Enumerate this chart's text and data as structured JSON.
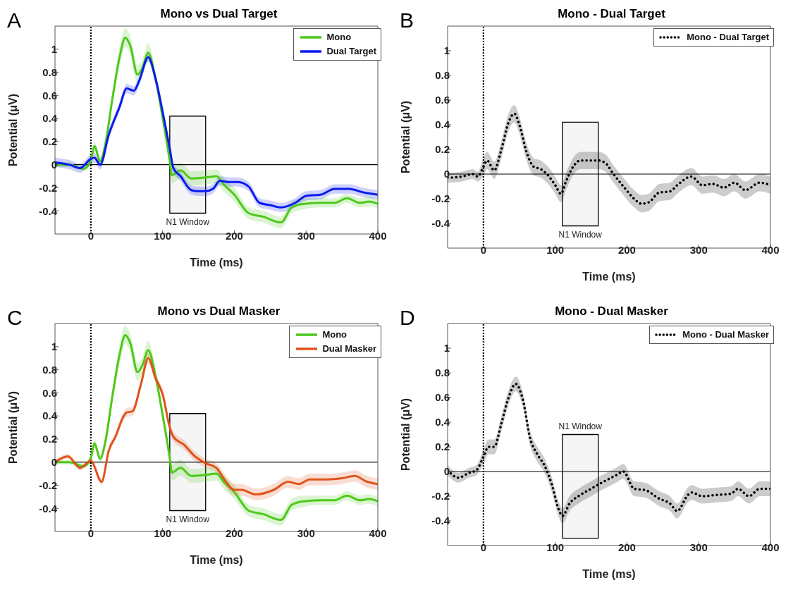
{
  "chart_data": [
    {
      "type": "line",
      "title": "Mono vs Dual Target",
      "xlabel": "Time (ms)",
      "ylabel": "Potential (μV)",
      "annotations": [
        "A"
      ],
      "xlim": [
        -50,
        400
      ],
      "xticks": [
        0,
        100,
        200,
        300,
        400
      ],
      "ylim": [
        -0.6,
        1.2
      ],
      "yticks": [
        -0.4,
        -0.2,
        0,
        0.2,
        0.4,
        0.6,
        0.8,
        1
      ],
      "grid": false,
      "legend": "top right",
      "marker": "none",
      "ref_lines": [
        {
          "axis": "x",
          "value": 0,
          "line_style": "dotted",
          "color": "#000000"
        },
        {
          "axis": "y",
          "value": 0,
          "line_style": "solid",
          "color": "#000000"
        }
      ],
      "bands": [
        {
          "axis": "x",
          "from": 110,
          "to": 160,
          "label": "N1 Window"
        }
      ],
      "series": [
        {
          "name": "Mono",
          "color": "#4dc919",
          "line_style": "solid",
          "x": [
            -50,
            -30,
            -10,
            0,
            5,
            13,
            20,
            30,
            40,
            48,
            55,
            65,
            72,
            80,
            90,
            100,
            110,
            113,
            125,
            140,
            160,
            175,
            185,
            200,
            220,
            240,
            265,
            280,
            295,
            320,
            340,
            357,
            375,
            388,
            400
          ],
          "values": [
            0,
            0,
            -0.035,
            0.035,
            0.16,
            0.03,
            0.17,
            0.57,
            0.93,
            1.1,
            1.03,
            0.78,
            0.84,
            0.97,
            0.75,
            0.41,
            0.035,
            -0.09,
            -0.05,
            -0.12,
            -0.11,
            -0.1,
            -0.17,
            -0.26,
            -0.42,
            -0.45,
            -0.5,
            -0.37,
            -0.34,
            -0.33,
            -0.33,
            -0.29,
            -0.33,
            -0.32,
            -0.34
          ],
          "lower": [
            -0.02,
            -0.02,
            -0.055,
            0.005,
            0.12,
            0,
            0.12,
            0.51,
            0.85,
            1.02,
            0.95,
            0.7,
            0.77,
            0.89,
            0.69,
            0.35,
            -0.035,
            -0.16,
            -0.12,
            -0.18,
            -0.17,
            -0.16,
            -0.23,
            -0.32,
            -0.47,
            -0.5,
            -0.55,
            -0.42,
            -0.39,
            -0.37,
            -0.37,
            -0.33,
            -0.37,
            -0.36,
            -0.38
          ],
          "upper": [
            0.02,
            0.02,
            -0.015,
            0.065,
            0.2,
            0.06,
            0.22,
            0.63,
            1.01,
            1.18,
            1.11,
            0.86,
            0.91,
            1.05,
            0.81,
            0.47,
            0.105,
            -0.02,
            0.02,
            -0.06,
            -0.05,
            -0.04,
            -0.11,
            -0.2,
            -0.37,
            -0.4,
            -0.45,
            -0.32,
            -0.29,
            -0.29,
            -0.29,
            -0.25,
            -0.29,
            -0.28,
            -0.3
          ]
        },
        {
          "name": "Dual Target",
          "color": "#0a1bf0",
          "line_style": "solid",
          "x": [
            -50,
            -30,
            -15,
            0,
            5,
            13,
            25,
            40,
            50,
            60,
            67,
            80,
            90,
            100,
            110,
            115,
            125,
            140,
            150,
            160,
            170,
            180,
            192,
            205,
            220,
            235,
            250,
            265,
            285,
            300,
            320,
            340,
            360,
            380,
            400
          ],
          "values": [
            0.02,
            0,
            -0.03,
            0.05,
            0.06,
            0,
            0.26,
            0.5,
            0.66,
            0.64,
            0.72,
            0.93,
            0.75,
            0.46,
            0.14,
            -0.03,
            -0.1,
            -0.22,
            -0.23,
            -0.23,
            -0.21,
            -0.14,
            -0.15,
            -0.15,
            -0.19,
            -0.33,
            -0.35,
            -0.37,
            -0.33,
            -0.27,
            -0.26,
            -0.21,
            -0.21,
            -0.24,
            -0.26
          ],
          "lower": [
            -0.02,
            -0.04,
            -0.07,
            0.01,
            0.02,
            -0.04,
            0.22,
            0.46,
            0.62,
            0.6,
            0.68,
            0.89,
            0.71,
            0.42,
            0.1,
            -0.07,
            -0.14,
            -0.26,
            -0.27,
            -0.27,
            -0.25,
            -0.18,
            -0.19,
            -0.19,
            -0.23,
            -0.37,
            -0.39,
            -0.41,
            -0.37,
            -0.31,
            -0.3,
            -0.25,
            -0.25,
            -0.28,
            -0.3
          ],
          "upper": [
            0.06,
            0.04,
            0.01,
            0.09,
            0.1,
            0.04,
            0.3,
            0.54,
            0.7,
            0.68,
            0.76,
            0.97,
            0.79,
            0.5,
            0.18,
            0.01,
            -0.06,
            -0.18,
            -0.19,
            -0.19,
            -0.17,
            -0.1,
            -0.11,
            -0.11,
            -0.15,
            -0.29,
            -0.31,
            -0.33,
            -0.29,
            -0.23,
            -0.22,
            -0.17,
            -0.17,
            -0.2,
            -0.22
          ]
        }
      ]
    },
    {
      "type": "line",
      "title": "Mono - Dual Target",
      "xlabel": "Time (ms)",
      "ylabel": "Potential (μV)",
      "annotations": [
        "B"
      ],
      "xlim": [
        -50,
        400
      ],
      "xticks": [
        0,
        100,
        200,
        300,
        400
      ],
      "ylim": [
        -0.6,
        1.2
      ],
      "yticks": [
        -0.4,
        -0.2,
        0,
        0.2,
        0.4,
        0.6,
        0.8,
        1
      ],
      "grid": false,
      "legend": "top right",
      "marker": "none",
      "ref_lines": [
        {
          "axis": "x",
          "value": 0,
          "line_style": "dotted",
          "color": "#000000"
        },
        {
          "axis": "y",
          "value": 0,
          "line_style": "solid",
          "color": "#000000"
        }
      ],
      "bands": [
        {
          "axis": "x",
          "from": 110,
          "to": 160,
          "label": "N1 Window"
        }
      ],
      "series": [
        {
          "name": "Mono - Dual Target",
          "color": "#000000",
          "line_style": "dotted",
          "x": [
            -50,
            -30,
            -15,
            -8,
            0,
            5,
            15,
            25,
            35,
            43,
            50,
            60,
            70,
            80,
            90,
            100,
            108,
            115,
            125,
            135,
            150,
            160,
            170,
            180,
            195,
            210,
            220,
            230,
            245,
            260,
            270,
            290,
            305,
            320,
            335,
            350,
            365,
            385,
            400
          ],
          "values": [
            -0.03,
            -0.02,
            0,
            -0.02,
            0.06,
            0.11,
            0.03,
            0.2,
            0.42,
            0.49,
            0.4,
            0.18,
            0.06,
            0.04,
            -0.01,
            -0.09,
            -0.16,
            -0.06,
            0.06,
            0.11,
            0.11,
            0.11,
            0.09,
            0.01,
            -0.1,
            -0.2,
            -0.24,
            -0.23,
            -0.15,
            -0.14,
            -0.09,
            -0.02,
            -0.09,
            -0.08,
            -0.11,
            -0.07,
            -0.13,
            -0.07,
            -0.09
          ],
          "lower": [
            -0.07,
            -0.06,
            -0.04,
            -0.06,
            -0.01,
            0.04,
            -0.04,
            0.13,
            0.35,
            0.42,
            0.33,
            0.11,
            -0.01,
            -0.03,
            -0.08,
            -0.16,
            -0.23,
            -0.13,
            -0.01,
            0.04,
            0.04,
            0.04,
            0.02,
            -0.06,
            -0.17,
            -0.27,
            -0.31,
            -0.3,
            -0.22,
            -0.21,
            -0.16,
            -0.09,
            -0.16,
            -0.15,
            -0.18,
            -0.14,
            -0.2,
            -0.14,
            -0.16
          ],
          "upper": [
            0.01,
            0.02,
            0.04,
            0.02,
            0.13,
            0.18,
            0.1,
            0.27,
            0.49,
            0.56,
            0.47,
            0.25,
            0.13,
            0.11,
            0.06,
            -0.02,
            -0.09,
            0.01,
            0.13,
            0.18,
            0.18,
            0.18,
            0.16,
            0.08,
            -0.03,
            -0.13,
            -0.17,
            -0.16,
            -0.08,
            -0.07,
            -0.02,
            0.05,
            -0.02,
            -0.01,
            -0.04,
            0,
            -0.06,
            0,
            -0.02
          ]
        }
      ]
    },
    {
      "type": "line",
      "title": "Mono vs Dual Masker",
      "xlabel": "Time (ms)",
      "ylabel": "Potential (μV)",
      "annotations": [
        "C"
      ],
      "xlim": [
        -50,
        400
      ],
      "xticks": [
        0,
        100,
        200,
        300,
        400
      ],
      "ylim": [
        -0.6,
        1.2
      ],
      "yticks": [
        -0.4,
        -0.2,
        0,
        0.2,
        0.4,
        0.6,
        0.8,
        1
      ],
      "grid": false,
      "legend": "top right",
      "marker": "none",
      "ref_lines": [
        {
          "axis": "x",
          "value": 0,
          "line_style": "dotted",
          "color": "#000000"
        },
        {
          "axis": "y",
          "value": 0,
          "line_style": "solid",
          "color": "#000000"
        }
      ],
      "bands": [
        {
          "axis": "x",
          "from": 110,
          "to": 160,
          "label": "N1 Window"
        }
      ],
      "series": [
        {
          "name": "Mono",
          "color": "#4dc919",
          "line_style": "solid",
          "x": [
            -50,
            -30,
            -10,
            0,
            5,
            13,
            20,
            30,
            40,
            48,
            55,
            65,
            72,
            80,
            90,
            100,
            110,
            113,
            125,
            140,
            160,
            175,
            185,
            200,
            220,
            240,
            265,
            280,
            295,
            320,
            340,
            357,
            375,
            388,
            400
          ],
          "values": [
            0,
            0,
            -0.035,
            0.035,
            0.16,
            0.03,
            0.17,
            0.57,
            0.93,
            1.1,
            1.03,
            0.78,
            0.84,
            0.97,
            0.75,
            0.41,
            0.035,
            -0.09,
            -0.05,
            -0.12,
            -0.11,
            -0.1,
            -0.17,
            -0.26,
            -0.42,
            -0.45,
            -0.5,
            -0.37,
            -0.34,
            -0.33,
            -0.33,
            -0.29,
            -0.33,
            -0.32,
            -0.34
          ],
          "lower": [
            -0.02,
            -0.02,
            -0.055,
            0.005,
            0.12,
            0,
            0.12,
            0.51,
            0.85,
            1.02,
            0.95,
            0.7,
            0.77,
            0.89,
            0.69,
            0.35,
            -0.035,
            -0.16,
            -0.12,
            -0.18,
            -0.17,
            -0.16,
            -0.23,
            -0.32,
            -0.47,
            -0.5,
            -0.55,
            -0.42,
            -0.39,
            -0.37,
            -0.37,
            -0.33,
            -0.37,
            -0.36,
            -0.38
          ],
          "upper": [
            0.02,
            0.02,
            -0.015,
            0.065,
            0.2,
            0.06,
            0.22,
            0.63,
            1.01,
            1.18,
            1.11,
            0.86,
            0.91,
            1.05,
            0.81,
            0.47,
            0.105,
            -0.02,
            0.02,
            -0.06,
            -0.05,
            -0.04,
            -0.11,
            -0.2,
            -0.37,
            -0.4,
            -0.45,
            -0.32,
            -0.29,
            -0.29,
            -0.29,
            -0.25,
            -0.29,
            -0.28,
            -0.3
          ]
        },
        {
          "name": "Dual Masker",
          "color": "#e0531c",
          "line_style": "solid",
          "x": [
            -50,
            -32,
            -15,
            0,
            15,
            25,
            35,
            45,
            50,
            58,
            70,
            80,
            90,
            100,
            110,
            115,
            130,
            145,
            160,
            175,
            185,
            200,
            210,
            230,
            255,
            275,
            290,
            305,
            330,
            350,
            368,
            385,
            400
          ],
          "values": [
            0,
            0.05,
            -0.05,
            0.01,
            -0.17,
            0.1,
            0.23,
            0.39,
            0.43,
            0.44,
            0.68,
            0.9,
            0.73,
            0.59,
            0.3,
            0.22,
            0.15,
            0.05,
            -0.01,
            -0.05,
            -0.14,
            -0.24,
            -0.24,
            -0.28,
            -0.24,
            -0.17,
            -0.19,
            -0.15,
            -0.15,
            -0.14,
            -0.12,
            -0.17,
            -0.19
          ],
          "lower": [
            -0.02,
            0.03,
            -0.07,
            -0.01,
            -0.2,
            0.07,
            0.2,
            0.35,
            0.39,
            0.4,
            0.64,
            0.85,
            0.69,
            0.55,
            0.26,
            0.18,
            0.11,
            0.01,
            -0.05,
            -0.09,
            -0.19,
            -0.29,
            -0.29,
            -0.33,
            -0.29,
            -0.22,
            -0.24,
            -0.2,
            -0.2,
            -0.19,
            -0.17,
            -0.22,
            -0.24
          ],
          "upper": [
            0.02,
            0.07,
            -0.03,
            0.03,
            -0.14,
            0.13,
            0.26,
            0.43,
            0.47,
            0.48,
            0.72,
            0.95,
            0.77,
            0.63,
            0.34,
            0.26,
            0.19,
            0.09,
            0.03,
            -0.01,
            -0.09,
            -0.19,
            -0.19,
            -0.23,
            -0.19,
            -0.12,
            -0.14,
            -0.1,
            -0.1,
            -0.09,
            -0.07,
            -0.12,
            -0.14
          ]
        }
      ]
    },
    {
      "type": "line",
      "title": "Mono - Dual Masker",
      "xlabel": "Time (ms)",
      "ylabel": "Potential (μV)",
      "annotations": [
        "D"
      ],
      "xlim": [
        -50,
        400
      ],
      "xticks": [
        0,
        100,
        200,
        300,
        400
      ],
      "ylim": [
        -0.6,
        1.2
      ],
      "yticks": [
        -0.4,
        -0.2,
        0,
        0.2,
        0.4,
        0.6,
        0.8,
        1
      ],
      "grid": false,
      "legend": "top right",
      "marker": "none",
      "ref_lines": [
        {
          "axis": "x",
          "value": 0,
          "line_style": "dotted",
          "color": "#000000"
        },
        {
          "axis": "y",
          "value": 0,
          "line_style": "solid",
          "color": "#000000"
        }
      ],
      "bands": [
        {
          "axis": "x",
          "from": 110,
          "to": 160,
          "label": "N1 Window"
        }
      ],
      "series": [
        {
          "name": "Mono - Dual Masker",
          "color": "#000000",
          "line_style": "dotted",
          "x": [
            -50,
            -35,
            -20,
            -10,
            0,
            7,
            15,
            25,
            35,
            45,
            55,
            65,
            75,
            85,
            95,
            105,
            110,
            120,
            135,
            150,
            165,
            185,
            195,
            210,
            225,
            245,
            260,
            270,
            285,
            290,
            305,
            325,
            345,
            355,
            370,
            385,
            400
          ],
          "values": [
            0.01,
            -0.05,
            -0.01,
            0.01,
            0.12,
            0.2,
            0.2,
            0.39,
            0.6,
            0.71,
            0.58,
            0.27,
            0.14,
            0.05,
            -0.1,
            -0.31,
            -0.36,
            -0.26,
            -0.19,
            -0.14,
            -0.09,
            -0.03,
            0,
            -0.14,
            -0.15,
            -0.22,
            -0.26,
            -0.32,
            -0.19,
            -0.17,
            -0.2,
            -0.19,
            -0.18,
            -0.14,
            -0.2,
            -0.14,
            -0.14
          ],
          "lower": [
            -0.03,
            -0.09,
            -0.05,
            -0.03,
            0.06,
            0.14,
            0.14,
            0.33,
            0.54,
            0.65,
            0.52,
            0.21,
            0.08,
            -0.01,
            -0.16,
            -0.37,
            -0.42,
            -0.32,
            -0.25,
            -0.2,
            -0.15,
            -0.09,
            -0.06,
            -0.2,
            -0.21,
            -0.28,
            -0.32,
            -0.38,
            -0.25,
            -0.23,
            -0.26,
            -0.25,
            -0.24,
            -0.2,
            -0.26,
            -0.2,
            -0.2
          ],
          "upper": [
            0.05,
            -0.01,
            0.03,
            0.05,
            0.18,
            0.26,
            0.26,
            0.45,
            0.66,
            0.77,
            0.64,
            0.33,
            0.2,
            0.11,
            -0.04,
            -0.25,
            -0.3,
            -0.2,
            -0.13,
            -0.08,
            -0.03,
            0.03,
            0.06,
            -0.08,
            -0.09,
            -0.16,
            -0.2,
            -0.26,
            -0.13,
            -0.11,
            -0.14,
            -0.13,
            -0.12,
            -0.08,
            -0.14,
            -0.08,
            -0.08
          ]
        }
      ]
    }
  ]
}
